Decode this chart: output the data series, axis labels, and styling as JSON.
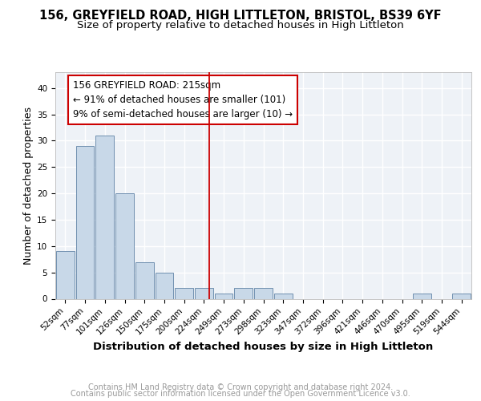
{
  "title1": "156, GREYFIELD ROAD, HIGH LITTLETON, BRISTOL, BS39 6YF",
  "title2": "Size of property relative to detached houses in High Littleton",
  "xlabel": "Distribution of detached houses by size in High Littleton",
  "ylabel": "Number of detached properties",
  "bar_labels": [
    "52sqm",
    "77sqm",
    "101sqm",
    "126sqm",
    "150sqm",
    "175sqm",
    "200sqm",
    "224sqm",
    "249sqm",
    "273sqm",
    "298sqm",
    "323sqm",
    "347sqm",
    "372sqm",
    "396sqm",
    "421sqm",
    "446sqm",
    "470sqm",
    "495sqm",
    "519sqm",
    "544sqm"
  ],
  "bar_values": [
    9,
    29,
    31,
    20,
    7,
    5,
    2,
    2,
    1,
    2,
    2,
    1,
    0,
    0,
    0,
    0,
    0,
    0,
    1,
    0,
    1
  ],
  "bar_color": "#c8d8e8",
  "bar_edge_color": "#7aaan0",
  "vline_x": 7.28,
  "vline_color": "#cc0000",
  "annotation_line1": "156 GREYFIELD ROAD: 215sqm",
  "annotation_line2": "← 91% of detached houses are smaller (101)",
  "annotation_line3": "9% of semi-detached houses are larger (10) →",
  "annotation_box_color": "#cc0000",
  "ylim": [
    0,
    43
  ],
  "yticks": [
    0,
    5,
    10,
    15,
    20,
    25,
    30,
    35,
    40
  ],
  "footer_line1": "Contains HM Land Registry data © Crown copyright and database right 2024.",
  "footer_line2": "Contains public sector information licensed under the Open Government Licence v3.0.",
  "background_color": "#eef2f7",
  "grid_color": "#ffffff",
  "title1_fontsize": 10.5,
  "title2_fontsize": 9.5,
  "axis_label_fontsize": 9,
  "tick_fontsize": 7.5,
  "annotation_fontsize": 8.5,
  "footer_fontsize": 7
}
